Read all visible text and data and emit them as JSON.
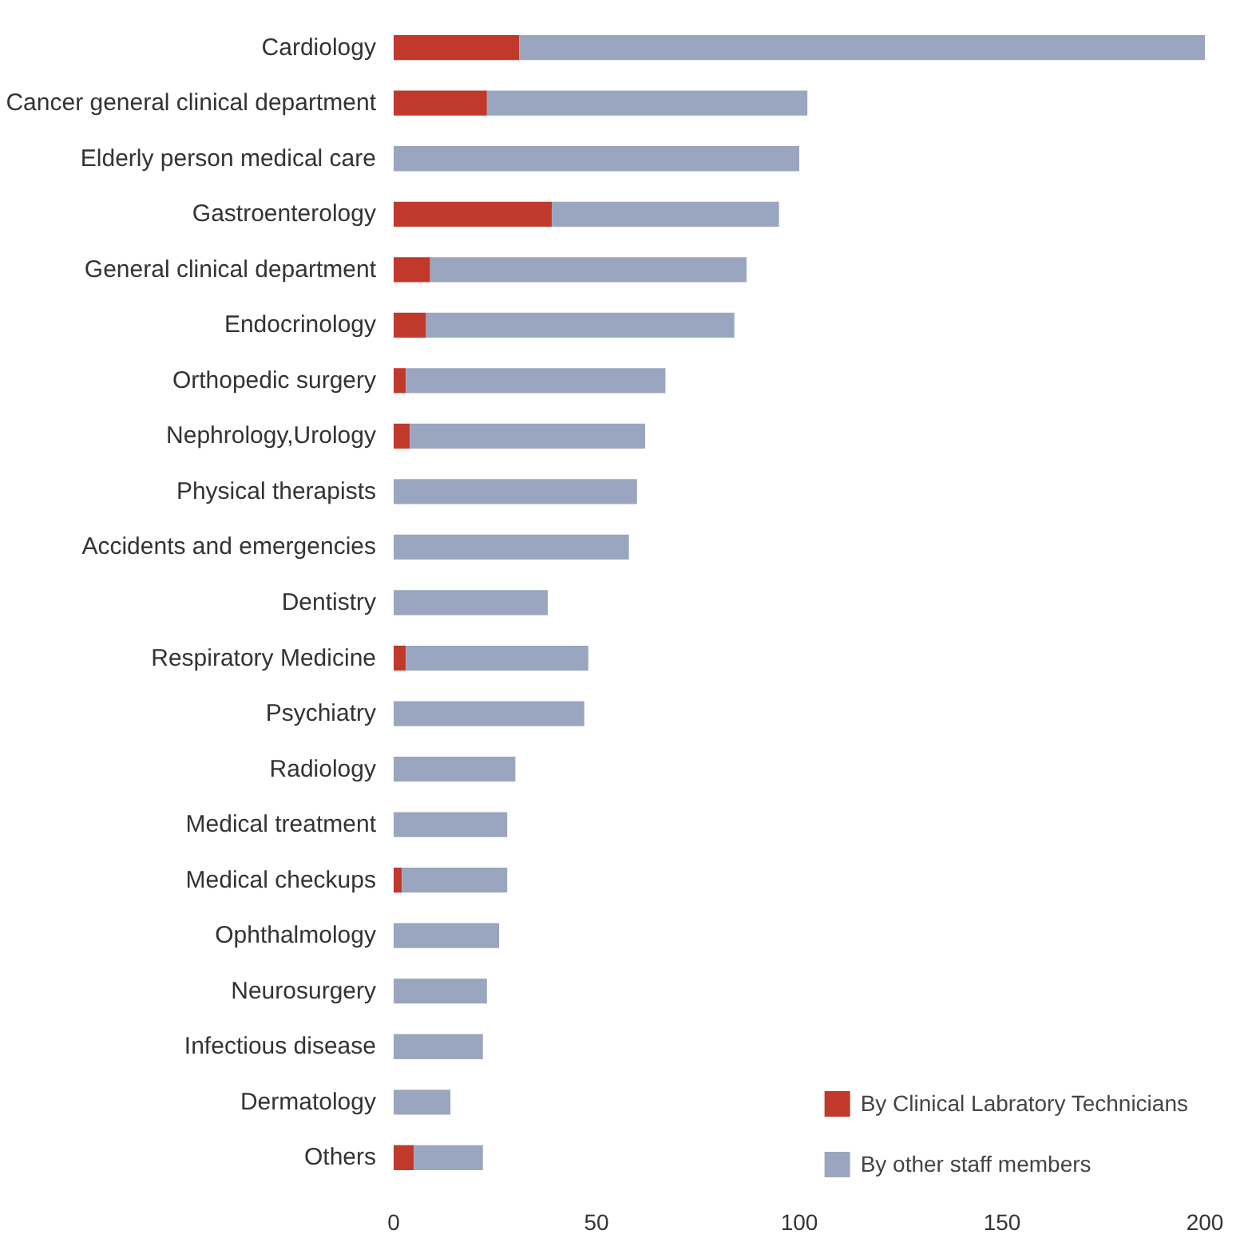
{
  "chart_data": {
    "type": "bar",
    "orientation": "horizontal",
    "stacked": true,
    "categories": [
      "Cardiology",
      "Cancer general clinical department",
      "Elderly person medical care",
      "Gastroenterology",
      "General clinical department",
      "Endocrinology",
      "Orthopedic surgery",
      "Nephrology,Urology",
      "Physical therapists",
      "Accidents and emergencies",
      "Dentistry",
      "Respiratory Medicine",
      "Psychiatry",
      "Radiology",
      "Medical treatment",
      "Medical checkups",
      "Ophthalmology",
      "Neurosurgery",
      "Infectious disease",
      "Dermatology",
      "Others"
    ],
    "series": [
      {
        "name": "By Clinical Labratory Technicians",
        "color": "#c0392b",
        "values": [
          31,
          23,
          0,
          39,
          9,
          8,
          3,
          4,
          0,
          0,
          0,
          3,
          0,
          0,
          0,
          2,
          0,
          0,
          0,
          0,
          5
        ]
      },
      {
        "name": "By other staff members",
        "color": "#9aa6c0",
        "values": [
          169,
          79,
          100,
          56,
          78,
          76,
          64,
          58,
          60,
          58,
          38,
          45,
          47,
          30,
          28,
          26,
          26,
          23,
          22,
          14,
          17
        ]
      }
    ],
    "xlim": [
      0,
      200
    ],
    "xticks": [
      0,
      50,
      100,
      150,
      200
    ],
    "grid": false,
    "legend": "bottom right"
  }
}
